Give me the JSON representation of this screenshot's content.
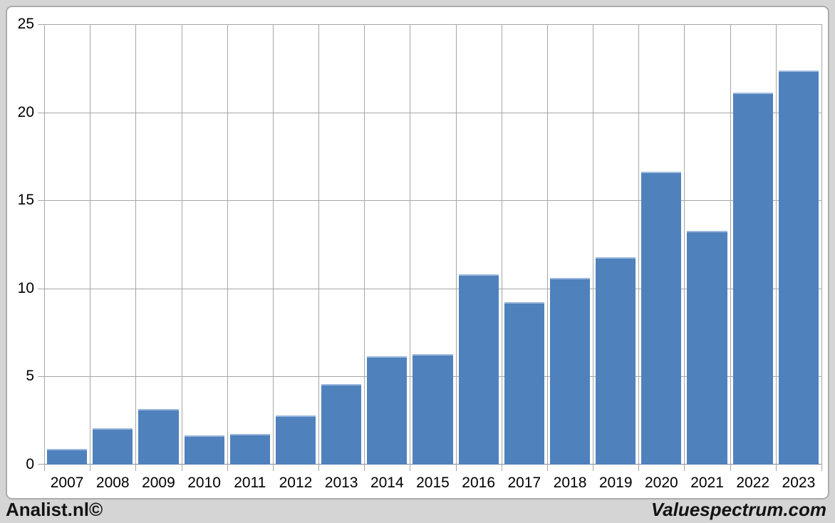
{
  "footer": {
    "left": "Analist.nl©",
    "right": "Valuespectrum.com"
  },
  "colors": {
    "bar": "#4f81bd",
    "bar_top_edge": "#9db9dd",
    "gridline": "#a6a6a6",
    "axis_line": "#8a8a8a",
    "frame_background": "#d5d5d5",
    "panel_border": "#ababab",
    "label_text": "#000000"
  },
  "chart_data": {
    "type": "bar",
    "categories": [
      "2007",
      "2008",
      "2009",
      "2010",
      "2011",
      "2012",
      "2013",
      "2014",
      "2015",
      "2016",
      "2017",
      "2018",
      "2019",
      "2020",
      "2021",
      "2022",
      "2023"
    ],
    "values": [
      0.95,
      2.1,
      3.2,
      1.7,
      1.8,
      2.85,
      4.6,
      6.2,
      6.3,
      10.85,
      9.25,
      10.65,
      11.8,
      16.65,
      13.3,
      21.15,
      22.4
    ],
    "ylim": [
      0,
      25
    ],
    "yticks": [
      0,
      5,
      10,
      15,
      20,
      25
    ],
    "grid": true,
    "legend": "none",
    "bar_color": "#4f81bd"
  }
}
